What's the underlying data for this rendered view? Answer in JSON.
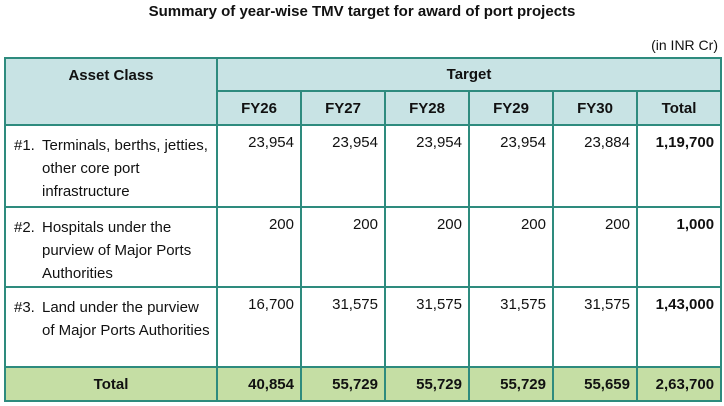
{
  "title": "Summary of year-wise TMV target for award of port projects",
  "unit": "(in INR Cr)",
  "headers": {
    "asset_class": "Asset Class",
    "target": "Target",
    "years": [
      "FY26",
      "FY27",
      "FY28",
      "FY29",
      "FY30"
    ],
    "total": "Total"
  },
  "rows": [
    {
      "index": "#1.",
      "label": "Terminals, berths, jetties, other core port infrastructure",
      "values": [
        "23,954",
        "23,954",
        "23,954",
        "23,954",
        "23,884"
      ],
      "total": "1,19,700"
    },
    {
      "index": "#2.",
      "label": "Hospitals under the purview of Major Ports Authorities",
      "values": [
        "200",
        "200",
        "200",
        "200",
        "200"
      ],
      "total": "1,000"
    },
    {
      "index": "#3.",
      "label": "Land under the purview of Major Ports Authorities",
      "values": [
        "16,700",
        "31,575",
        "31,575",
        "31,575",
        "31,575"
      ],
      "total": "1,43,000"
    }
  ],
  "totals": {
    "label": "Total",
    "values": [
      "40,854",
      "55,729",
      "55,729",
      "55,729",
      "55,659"
    ],
    "grand_total": "2,63,700"
  },
  "colors": {
    "header_bg": "#c8e3e4",
    "total_bg": "#c5dea4",
    "border": "#2e8b7e"
  }
}
